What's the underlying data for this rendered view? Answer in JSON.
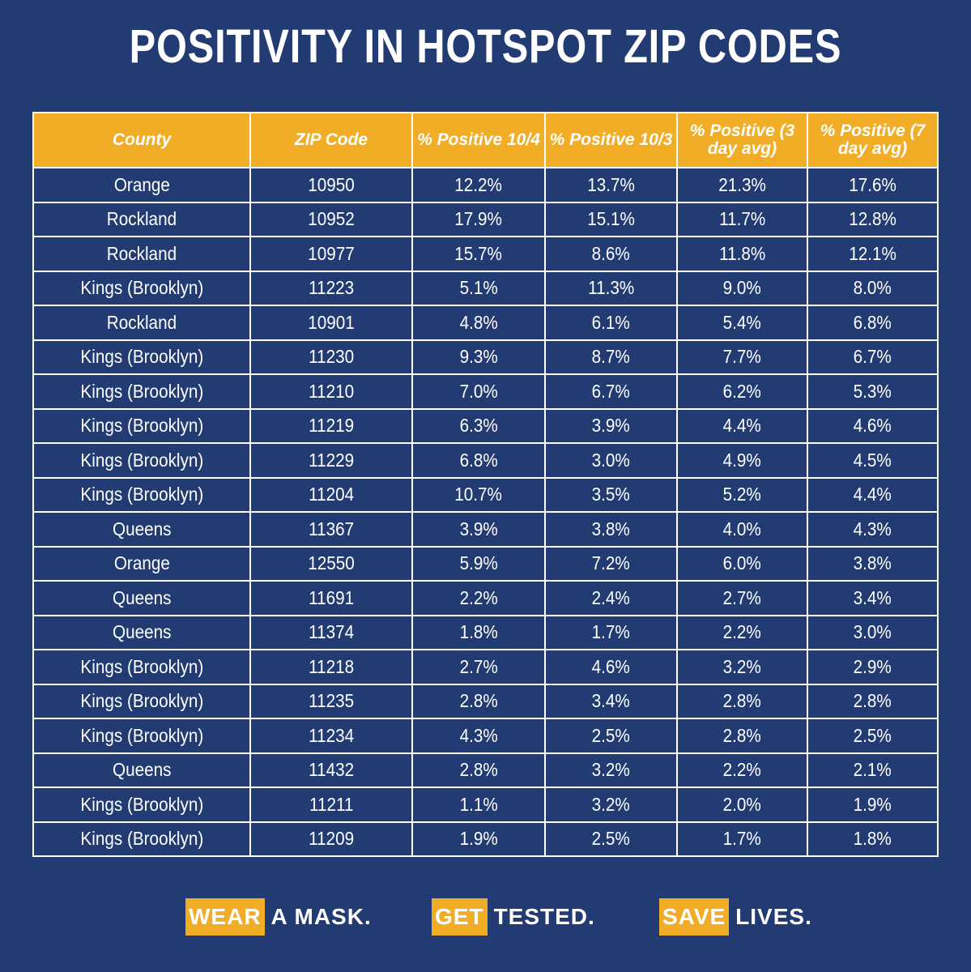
{
  "title": "POSITIVITY IN HOTSPOT ZIP CODES",
  "colors": {
    "background": "#233b73",
    "header": "#f2ad27",
    "border": "#ffffff",
    "text": "#ffffff"
  },
  "chart_data": {
    "type": "table",
    "columns": [
      "County",
      "ZIP Code",
      "% Positive 10/4",
      "% Positive 10/3",
      "% Positive (3 day avg)",
      "% Positive (7 day avg)"
    ],
    "rows": [
      [
        "Orange",
        "10950",
        "12.2%",
        "13.7%",
        "21.3%",
        "17.6%"
      ],
      [
        "Rockland",
        "10952",
        "17.9%",
        "15.1%",
        "11.7%",
        "12.8%"
      ],
      [
        "Rockland",
        "10977",
        "15.7%",
        "8.6%",
        "11.8%",
        "12.1%"
      ],
      [
        "Kings (Brooklyn)",
        "11223",
        "5.1%",
        "11.3%",
        "9.0%",
        "8.0%"
      ],
      [
        "Rockland",
        "10901",
        "4.8%",
        "6.1%",
        "5.4%",
        "6.8%"
      ],
      [
        "Kings (Brooklyn)",
        "11230",
        "9.3%",
        "8.7%",
        "7.7%",
        "6.7%"
      ],
      [
        "Kings (Brooklyn)",
        "11210",
        "7.0%",
        "6.7%",
        "6.2%",
        "5.3%"
      ],
      [
        "Kings (Brooklyn)",
        "11219",
        "6.3%",
        "3.9%",
        "4.4%",
        "4.6%"
      ],
      [
        "Kings (Brooklyn)",
        "11229",
        "6.8%",
        "3.0%",
        "4.9%",
        "4.5%"
      ],
      [
        "Kings (Brooklyn)",
        "11204",
        "10.7%",
        "3.5%",
        "5.2%",
        "4.4%"
      ],
      [
        "Queens",
        "11367",
        "3.9%",
        "3.8%",
        "4.0%",
        "4.3%"
      ],
      [
        "Orange",
        "12550",
        "5.9%",
        "7.2%",
        "6.0%",
        "3.8%"
      ],
      [
        "Queens",
        "11691",
        "2.2%",
        "2.4%",
        "2.7%",
        "3.4%"
      ],
      [
        "Queens",
        "11374",
        "1.8%",
        "1.7%",
        "2.2%",
        "3.0%"
      ],
      [
        "Kings (Brooklyn)",
        "11218",
        "2.7%",
        "4.6%",
        "3.2%",
        "2.9%"
      ],
      [
        "Kings (Brooklyn)",
        "11235",
        "2.8%",
        "3.4%",
        "2.8%",
        "2.8%"
      ],
      [
        "Kings (Brooklyn)",
        "11234",
        "4.3%",
        "2.5%",
        "2.8%",
        "2.5%"
      ],
      [
        "Queens",
        "11432",
        "2.8%",
        "3.2%",
        "2.2%",
        "2.1%"
      ],
      [
        "Kings (Brooklyn)",
        "11211",
        "1.1%",
        "3.2%",
        "2.0%",
        "1.9%"
      ],
      [
        "Kings (Brooklyn)",
        "11209",
        "1.9%",
        "2.5%",
        "1.7%",
        "1.8%"
      ]
    ]
  },
  "footer": [
    {
      "highlight": "WEAR",
      "rest": "A MASK."
    },
    {
      "highlight": "GET",
      "rest": "TESTED."
    },
    {
      "highlight": "SAVE",
      "rest": "LIVES."
    }
  ]
}
